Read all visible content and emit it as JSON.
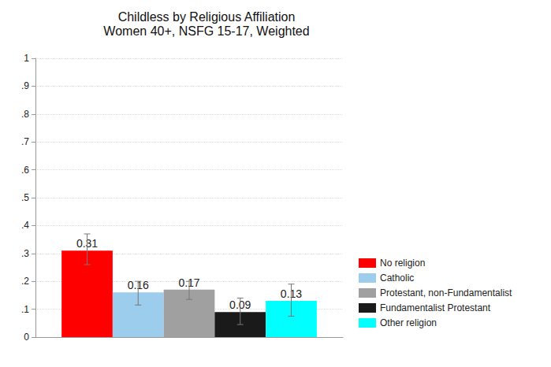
{
  "chart_data": {
    "type": "bar",
    "title": "Childless by Religious Affiliation",
    "subtitle": "Women 40+, NSFG 15-17, Weighted",
    "categories": [
      null
    ],
    "series": [
      {
        "name": "No religion",
        "color": "#ff0000",
        "values": [
          0.31
        ],
        "lower": [
          0.26
        ],
        "upper": [
          0.37
        ]
      },
      {
        "name": "Catholic",
        "color": "#9dcdec",
        "values": [
          0.16
        ],
        "lower": [
          0.115
        ],
        "upper": [
          0.2
        ]
      },
      {
        "name": "Protestant, non-Fundamentalist",
        "color": "#a0a0a0",
        "values": [
          0.17
        ],
        "lower": [
          0.135
        ],
        "upper": [
          0.2
        ]
      },
      {
        "name": "Fundamentalist Protestant",
        "color": "#1a1a1a",
        "values": [
          0.09
        ],
        "lower": [
          0.045
        ],
        "upper": [
          0.14
        ]
      },
      {
        "name": "Other religion",
        "color": "#00ffff",
        "values": [
          0.13
        ],
        "lower": [
          0.075
        ],
        "upper": [
          0.19
        ]
      }
    ],
    "ylim": [
      0,
      1
    ],
    "yticks": [
      0,
      {
        "value": 0.1,
        "label": ".1"
      },
      {
        "value": 0.2,
        "label": ".2"
      },
      {
        "value": 0.3,
        "label": ".3"
      },
      {
        "value": 0.4,
        "label": ".4"
      },
      {
        "value": 0.5,
        "label": ".5"
      },
      {
        "value": 0.6,
        "label": ".6"
      },
      {
        "value": 0.7,
        "label": ".7"
      },
      {
        "value": 0.8,
        "label": ".8"
      },
      {
        "value": 0.9,
        "label": ".9"
      },
      1
    ],
    "grid": true,
    "legend": "right",
    "data_labels": true
  }
}
